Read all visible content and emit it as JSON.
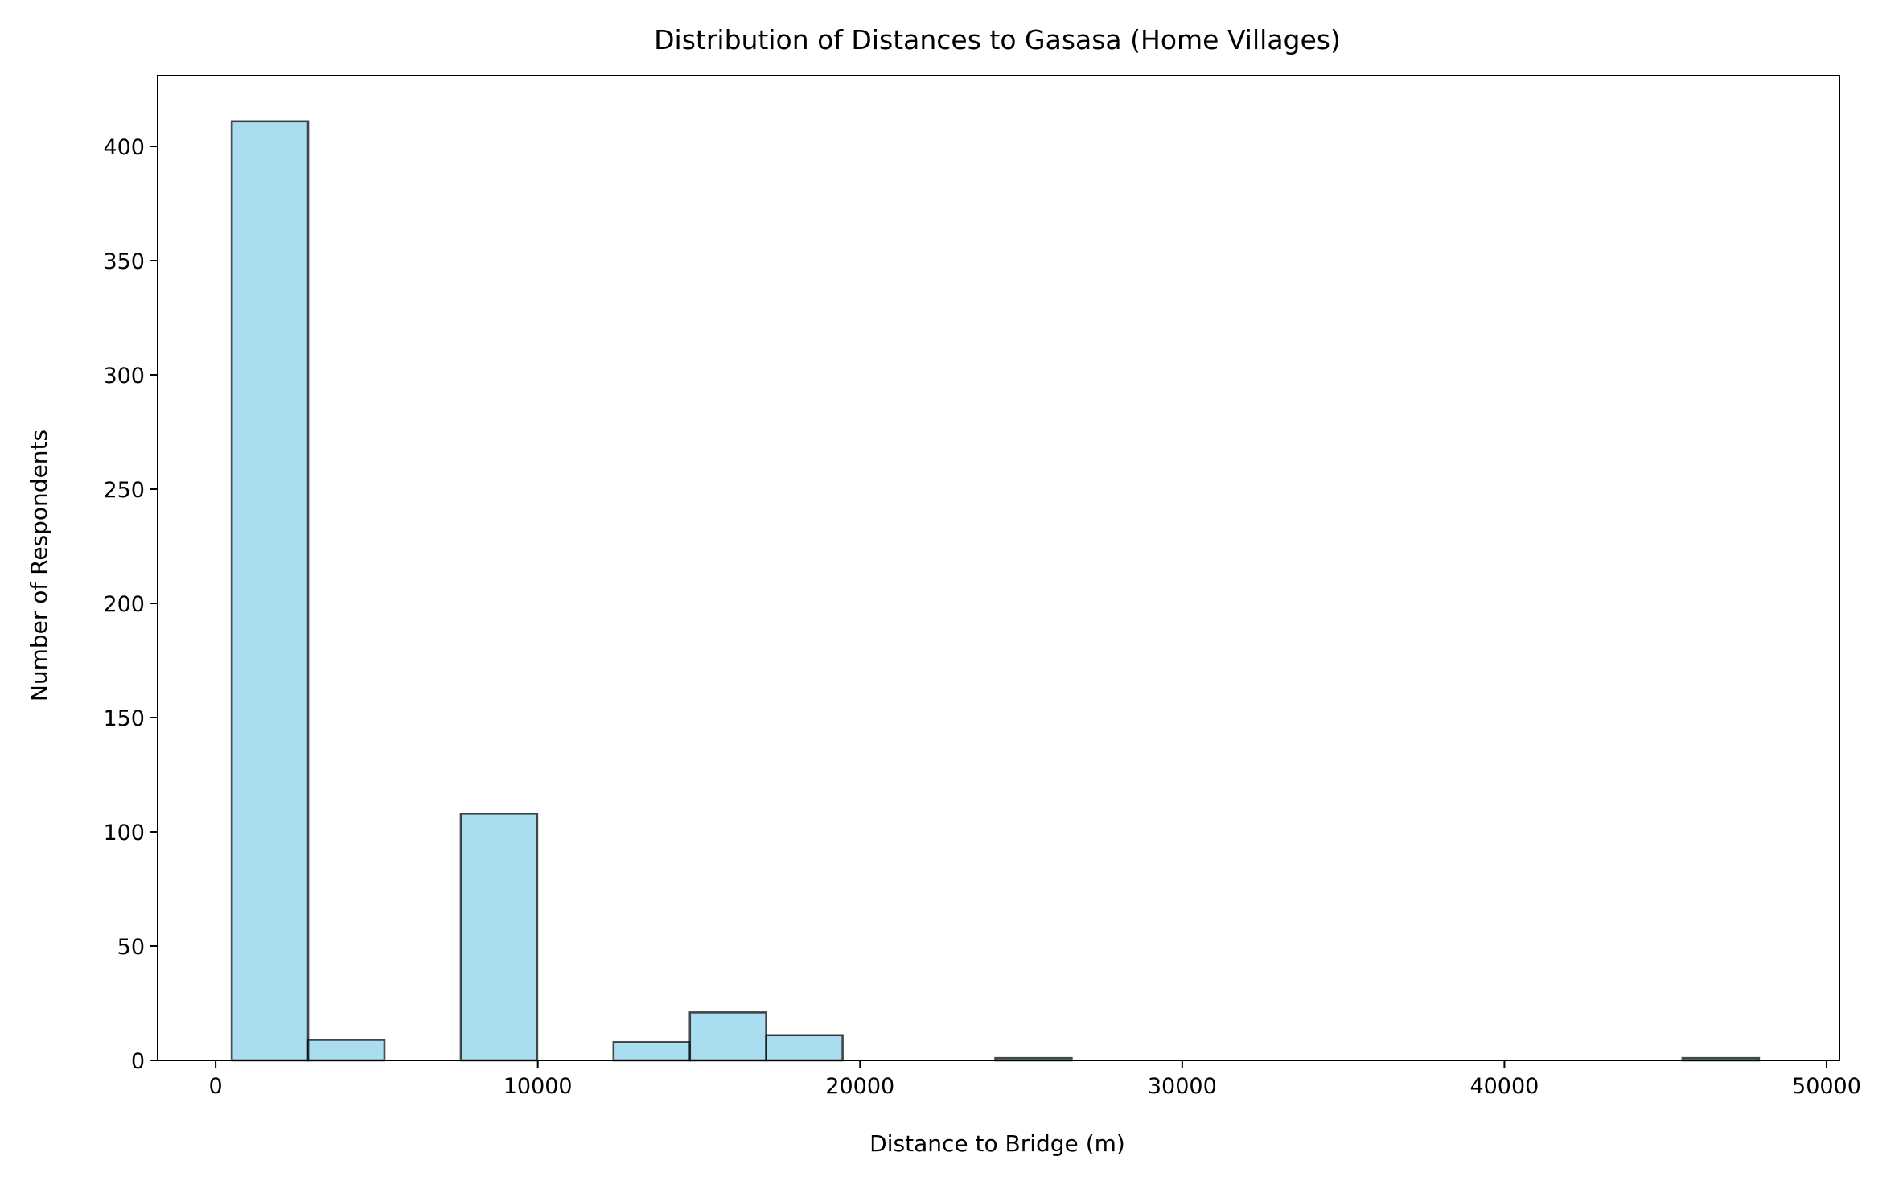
{
  "chart_data": {
    "type": "bar",
    "title": "Distribution of Distances to Gasasa (Home Villages)",
    "xlabel": "Distance to Bridge (m)",
    "ylabel": "Number of Respondents",
    "xlim": [
      -1800,
      50400
    ],
    "ylim": [
      0,
      431
    ],
    "grid": false,
    "bar_color": "#87ceeb",
    "edge_color": "#000000",
    "x_ticks": [
      0,
      10000,
      20000,
      30000,
      40000,
      50000
    ],
    "x_tick_labels": [
      "0",
      "10000",
      "20000",
      "30000",
      "40000",
      "50000"
    ],
    "y_ticks": [
      0,
      50,
      100,
      150,
      200,
      250,
      300,
      350,
      400
    ],
    "y_tick_labels": [
      "0",
      "50",
      "100",
      "150",
      "200",
      "250",
      "300",
      "350",
      "400"
    ],
    "bins": [
      {
        "x0": 500,
        "x1": 2870,
        "count": 411
      },
      {
        "x0": 2870,
        "x1": 5240,
        "count": 9
      },
      {
        "x0": 5240,
        "x1": 7610,
        "count": 0
      },
      {
        "x0": 7610,
        "x1": 9980,
        "count": 108
      },
      {
        "x0": 9980,
        "x1": 12350,
        "count": 0
      },
      {
        "x0": 12350,
        "x1": 14720,
        "count": 8
      },
      {
        "x0": 14720,
        "x1": 17090,
        "count": 21
      },
      {
        "x0": 17090,
        "x1": 19460,
        "count": 11
      },
      {
        "x0": 19460,
        "x1": 21830,
        "count": 0
      },
      {
        "x0": 21830,
        "x1": 24200,
        "count": 0
      },
      {
        "x0": 24200,
        "x1": 26570,
        "count": 1
      },
      {
        "x0": 26570,
        "x1": 28940,
        "count": 0
      },
      {
        "x0": 28940,
        "x1": 31310,
        "count": 0
      },
      {
        "x0": 31310,
        "x1": 33680,
        "count": 0
      },
      {
        "x0": 33680,
        "x1": 36050,
        "count": 0
      },
      {
        "x0": 36050,
        "x1": 38420,
        "count": 0
      },
      {
        "x0": 38420,
        "x1": 40790,
        "count": 0
      },
      {
        "x0": 40790,
        "x1": 43160,
        "count": 0
      },
      {
        "x0": 43160,
        "x1": 45530,
        "count": 0
      },
      {
        "x0": 45530,
        "x1": 47900,
        "count": 1
      }
    ]
  }
}
